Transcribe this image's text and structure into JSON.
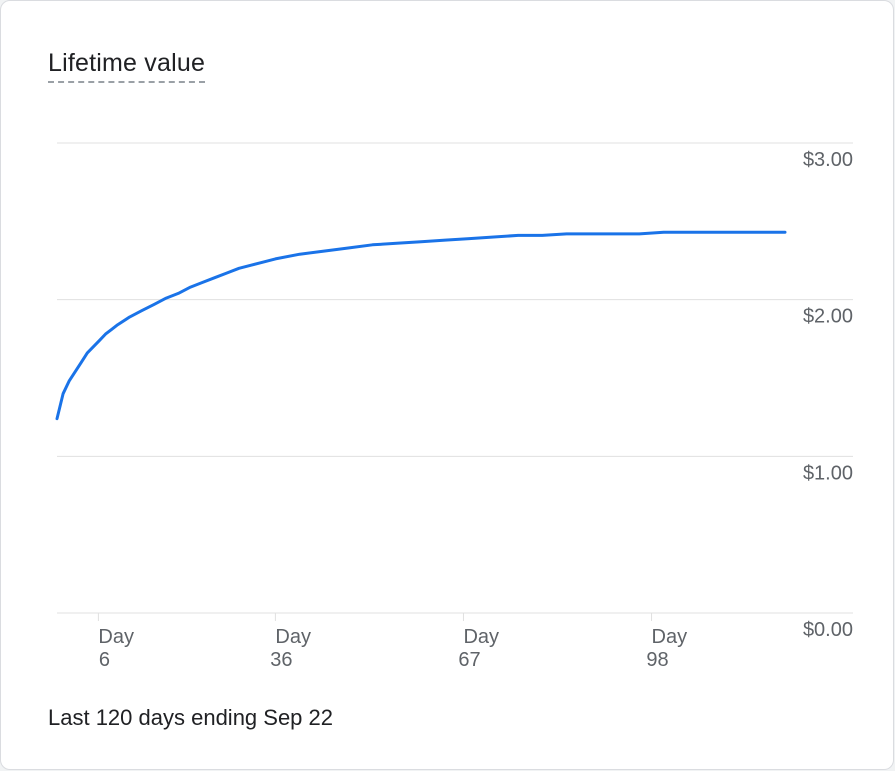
{
  "card": {
    "title": "Lifetime value",
    "footer": "Last 120 days ending Sep 22"
  },
  "colors": {
    "line": "#1a73e8",
    "grid": "#e0e0e0",
    "axis_text": "#5f6368"
  },
  "chart_data": {
    "type": "line",
    "title": "Lifetime value",
    "xlabel": "",
    "ylabel": "",
    "x_ticks": [
      {
        "day": 6,
        "line1": "Day",
        "line2": "6"
      },
      {
        "day": 36,
        "line1": "Day",
        "line2": "36"
      },
      {
        "day": 67,
        "line1": "Day",
        "line2": "67"
      },
      {
        "day": 98,
        "line1": "Day",
        "line2": "98"
      }
    ],
    "y_ticks": [
      {
        "value": 3,
        "label": "$3.00"
      },
      {
        "value": 2,
        "label": "$2.00"
      },
      {
        "value": 1,
        "label": "$1.00"
      },
      {
        "value": 0,
        "label": "$0.00"
      }
    ],
    "ylim": [
      0,
      3
    ],
    "xlim": [
      0,
      120
    ],
    "grid": true,
    "series": [
      {
        "x": [
          0,
          1,
          2,
          3,
          4,
          5,
          6,
          7,
          8,
          9,
          10,
          12,
          14,
          16,
          18,
          20,
          22,
          24,
          26,
          28,
          30,
          32,
          34,
          36,
          40,
          44,
          48,
          52,
          56,
          60,
          64,
          68,
          72,
          76,
          80,
          84,
          88,
          92,
          96,
          100,
          104,
          108,
          112,
          116,
          120
        ],
        "values": [
          1.24,
          1.4,
          1.48,
          1.54,
          1.6,
          1.66,
          1.7,
          1.74,
          1.78,
          1.81,
          1.84,
          1.89,
          1.93,
          1.97,
          2.01,
          2.04,
          2.08,
          2.11,
          2.14,
          2.17,
          2.2,
          2.22,
          2.24,
          2.26,
          2.29,
          2.31,
          2.33,
          2.35,
          2.36,
          2.37,
          2.38,
          2.39,
          2.4,
          2.41,
          2.41,
          2.42,
          2.42,
          2.42,
          2.42,
          2.43,
          2.43,
          2.43,
          2.43,
          2.43,
          2.43
        ]
      }
    ]
  }
}
